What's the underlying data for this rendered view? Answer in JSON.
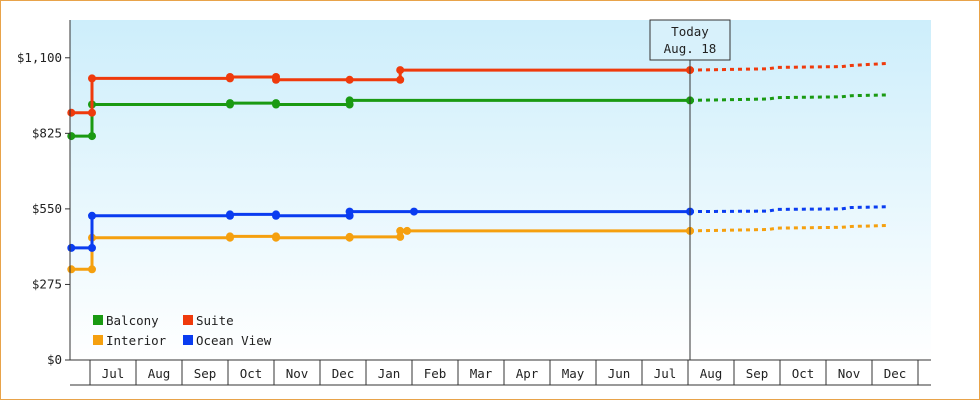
{
  "chart_data": {
    "type": "line",
    "title": "",
    "xlabel": "",
    "ylabel": "",
    "ylim": [
      0,
      1237.5
    ],
    "y_ticks": [
      {
        "value": 0,
        "label": "$0"
      },
      {
        "value": 275,
        "label": "$275"
      },
      {
        "value": 550,
        "label": "$550"
      },
      {
        "value": 825,
        "label": "$825"
      },
      {
        "value": 1100,
        "label": "$1,100"
      }
    ],
    "x_axis": {
      "min_month": 5.6,
      "max_month": 23.33,
      "months": [
        {
          "m": 6,
          "label": "Jul"
        },
        {
          "m": 7,
          "label": "Aug"
        },
        {
          "m": 8,
          "label": "Sep"
        },
        {
          "m": 9,
          "label": "Oct"
        },
        {
          "m": 10,
          "label": "Nov"
        },
        {
          "m": 11,
          "label": "Dec"
        },
        {
          "m": 12,
          "label": "Jan"
        },
        {
          "m": 13,
          "label": "Feb"
        },
        {
          "m": 14,
          "label": "Mar"
        },
        {
          "m": 15,
          "label": "Apr"
        },
        {
          "m": 16,
          "label": "May"
        },
        {
          "m": 17,
          "label": "Jun"
        },
        {
          "m": 18,
          "label": "Jul"
        },
        {
          "m": 19,
          "label": "Aug"
        },
        {
          "m": 20,
          "label": "Sep"
        },
        {
          "m": 21,
          "label": "Oct"
        },
        {
          "m": 22,
          "label": "Nov"
        },
        {
          "m": 23,
          "label": "Dec"
        }
      ]
    },
    "today": {
      "line1": "Today",
      "line2": "Aug. 18",
      "month": 19.0
    },
    "grid": false,
    "legend_position": "bottom-left",
    "series": [
      {
        "name": "Balcony",
        "color": "#1a9a12",
        "history": [
          [
            5.55,
            815
          ],
          [
            6.0,
            815
          ],
          [
            6.0,
            930
          ],
          [
            9.0,
            930
          ],
          [
            9.0,
            935
          ],
          [
            10.0,
            935
          ],
          [
            10.0,
            930
          ],
          [
            11.6,
            930
          ],
          [
            11.6,
            945
          ],
          [
            19.0,
            945
          ]
        ],
        "markers": [
          [
            5.55,
            815
          ],
          [
            6.0,
            815
          ],
          [
            6.0,
            930
          ],
          [
            9.0,
            930
          ],
          [
            9.0,
            935
          ],
          [
            10.0,
            935
          ],
          [
            10.0,
            930
          ],
          [
            11.6,
            930
          ],
          [
            11.6,
            945
          ],
          [
            19.0,
            945
          ]
        ],
        "forecast": [
          [
            19.0,
            945
          ],
          [
            20.7,
            950
          ],
          [
            20.9,
            955
          ],
          [
            22.3,
            958
          ],
          [
            22.5,
            962
          ],
          [
            23.33,
            965
          ]
        ]
      },
      {
        "name": "Suite",
        "color": "#ef3a0c",
        "history": [
          [
            5.55,
            900
          ],
          [
            6.0,
            900
          ],
          [
            6.0,
            1025
          ],
          [
            9.0,
            1025
          ],
          [
            9.0,
            1030
          ],
          [
            10.0,
            1030
          ],
          [
            10.0,
            1020
          ],
          [
            11.6,
            1020
          ],
          [
            12.7,
            1020
          ],
          [
            12.7,
            1055
          ],
          [
            19.0,
            1055
          ]
        ],
        "markers": [
          [
            5.55,
            900
          ],
          [
            6.0,
            900
          ],
          [
            6.0,
            1025
          ],
          [
            9.0,
            1025
          ],
          [
            9.0,
            1030
          ],
          [
            10.0,
            1030
          ],
          [
            10.0,
            1020
          ],
          [
            11.6,
            1020
          ],
          [
            12.7,
            1020
          ],
          [
            12.7,
            1055
          ],
          [
            19.0,
            1055
          ]
        ],
        "forecast": [
          [
            19.0,
            1055
          ],
          [
            20.7,
            1060
          ],
          [
            20.9,
            1065
          ],
          [
            22.3,
            1068
          ],
          [
            22.5,
            1072
          ],
          [
            23.33,
            1080
          ]
        ]
      },
      {
        "name": "Interior",
        "color": "#f5a00f",
        "history": [
          [
            5.55,
            330
          ],
          [
            6.0,
            330
          ],
          [
            6.0,
            445
          ],
          [
            9.0,
            445
          ],
          [
            9.0,
            450
          ],
          [
            10.0,
            450
          ],
          [
            10.0,
            445
          ],
          [
            11.6,
            445
          ],
          [
            11.6,
            448
          ],
          [
            12.7,
            448
          ],
          [
            12.7,
            470
          ],
          [
            19.0,
            470
          ]
        ],
        "markers": [
          [
            5.55,
            330
          ],
          [
            6.0,
            330
          ],
          [
            6.0,
            445
          ],
          [
            9.0,
            445
          ],
          [
            9.0,
            450
          ],
          [
            10.0,
            450
          ],
          [
            10.0,
            445
          ],
          [
            11.6,
            445
          ],
          [
            11.6,
            448
          ],
          [
            12.7,
            448
          ],
          [
            12.7,
            470
          ],
          [
            12.85,
            470
          ],
          [
            19.0,
            470
          ]
        ],
        "forecast": [
          [
            19.0,
            470
          ],
          [
            20.7,
            475
          ],
          [
            20.9,
            480
          ],
          [
            22.3,
            483
          ],
          [
            22.5,
            486
          ],
          [
            23.33,
            490
          ]
        ]
      },
      {
        "name": "Ocean View",
        "color": "#0a3cf0",
        "history": [
          [
            5.55,
            408
          ],
          [
            6.0,
            408
          ],
          [
            6.0,
            525
          ],
          [
            9.0,
            525
          ],
          [
            9.0,
            530
          ],
          [
            10.0,
            530
          ],
          [
            10.0,
            525
          ],
          [
            11.6,
            525
          ],
          [
            11.6,
            540
          ],
          [
            13.0,
            540
          ],
          [
            19.0,
            540
          ]
        ],
        "markers": [
          [
            5.55,
            408
          ],
          [
            6.0,
            408
          ],
          [
            6.0,
            525
          ],
          [
            9.0,
            525
          ],
          [
            9.0,
            530
          ],
          [
            10.0,
            530
          ],
          [
            10.0,
            525
          ],
          [
            11.6,
            525
          ],
          [
            11.6,
            540
          ],
          [
            13.0,
            540
          ],
          [
            19.0,
            540
          ]
        ],
        "forecast": [
          [
            19.0,
            540
          ],
          [
            20.7,
            542
          ],
          [
            20.9,
            548
          ],
          [
            22.3,
            550
          ],
          [
            22.5,
            555
          ],
          [
            23.33,
            558
          ]
        ]
      }
    ],
    "legend_order": [
      "Balcony",
      "Suite",
      "Interior",
      "Ocean View"
    ]
  },
  "background": {
    "top": "#cdeefb",
    "bottom": "#ffffff"
  }
}
